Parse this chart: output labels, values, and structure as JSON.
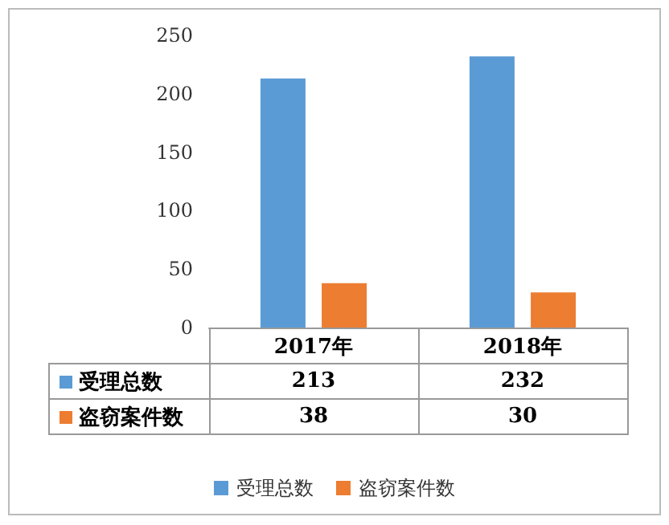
{
  "chart_data": {
    "type": "bar",
    "categories": [
      "2017年",
      "2018年"
    ],
    "series": [
      {
        "name": "受理总数",
        "color": "#5b9bd5",
        "values": [
          213,
          232
        ]
      },
      {
        "name": "盗窃案件数",
        "color": "#ed7d31",
        "values": [
          38,
          30
        ]
      }
    ],
    "ylim": [
      0,
      250
    ],
    "yticks": [
      0,
      50,
      100,
      150,
      200,
      250
    ],
    "grid": false,
    "legend": "bottom",
    "data_labels": true
  }
}
